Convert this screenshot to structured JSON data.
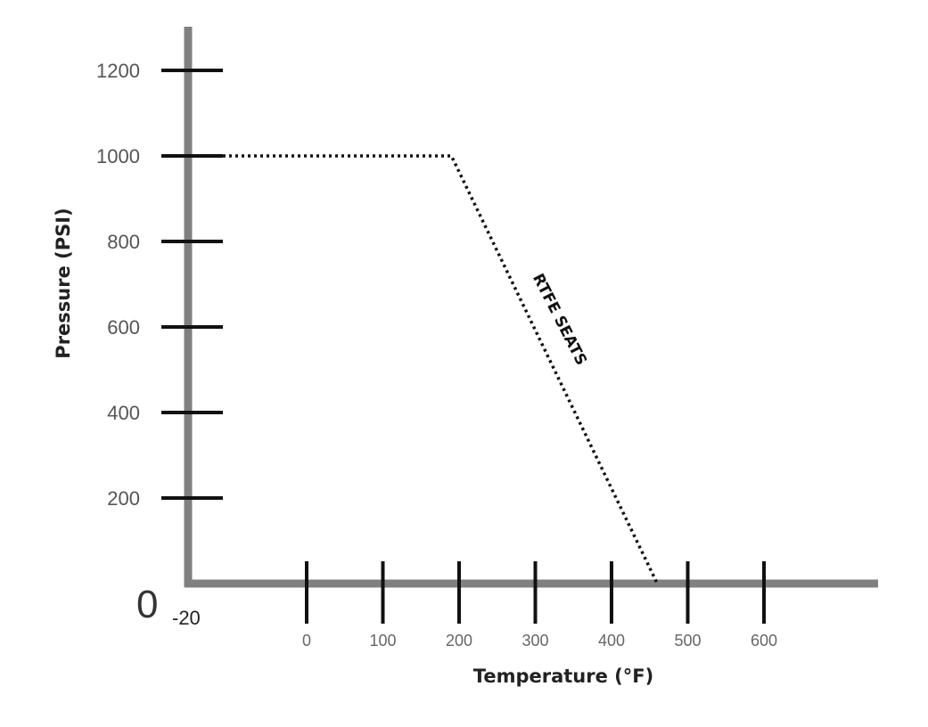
{
  "chart_data": {
    "type": "line",
    "xlabel": "Temperature (°F)",
    "ylabel": "Pressure (PSI)",
    "origin_label": "0",
    "origin_x_label": "-20",
    "x_ticks": [
      0,
      100,
      200,
      300,
      400,
      500,
      600
    ],
    "y_ticks": [
      200,
      400,
      600,
      800,
      1000,
      1200
    ],
    "xlim": [
      -20,
      750
    ],
    "ylim": [
      0,
      1300
    ],
    "grid": false,
    "colors": {
      "axis": "#808080",
      "tick": "#111111",
      "series": "#111111"
    },
    "series": [
      {
        "name": "RTFE SEATS",
        "style": "dotted",
        "x": [
          -20,
          190,
          460
        ],
        "y": [
          1000,
          1000,
          0
        ]
      }
    ]
  }
}
